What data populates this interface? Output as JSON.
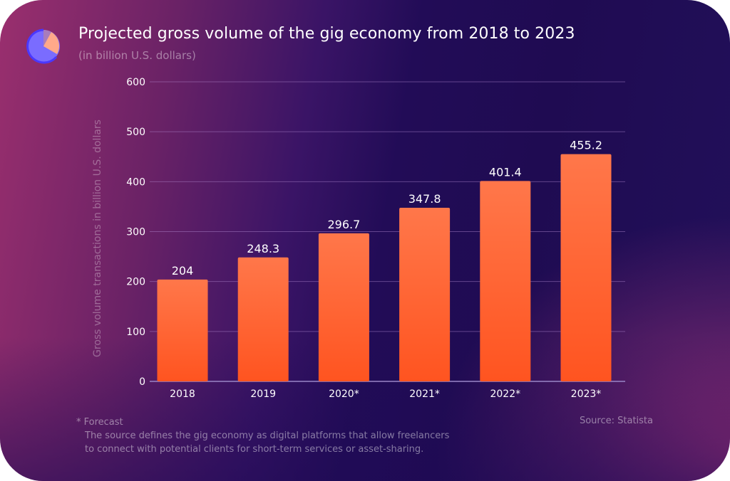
{
  "header": {
    "title": "Projected gross volume of the gig economy from 2018 to 2023",
    "subtitle": "(in billion U.S. dollars)",
    "logo_icon": "pie-chart-icon"
  },
  "footer": {
    "forecast_note": "* Forecast",
    "definition_line1": "The source defines the gig economy as digital platforms that allow freelancers",
    "definition_line2": "to connect with potential clients for short-term services or asset-sharing.",
    "source": "Source: Statista"
  },
  "colors": {
    "bar_top": "#ff774a",
    "bar_bottom": "#ff5420",
    "gridline": "#8a6aa8",
    "text": "#ffffff"
  },
  "chart_data": {
    "type": "bar",
    "title": "Projected gross volume of the gig economy from 2018 to 2023",
    "subtitle": "(in billion U.S. dollars)",
    "xlabel": "",
    "ylabel": "Gross volume transactions in billion U.S. dollars",
    "categories": [
      "2018",
      "2019",
      "2020*",
      "2021*",
      "2022*",
      "2023*"
    ],
    "values": [
      204,
      248.3,
      296.7,
      347.8,
      401.4,
      455.2
    ],
    "value_labels": [
      "204",
      "248.3",
      "296.7",
      "347.8",
      "401.4",
      "455.2"
    ],
    "ylim": [
      0,
      600
    ],
    "yticks": [
      0,
      100,
      200,
      300,
      400,
      500,
      600
    ],
    "grid": true,
    "legend": "none"
  }
}
